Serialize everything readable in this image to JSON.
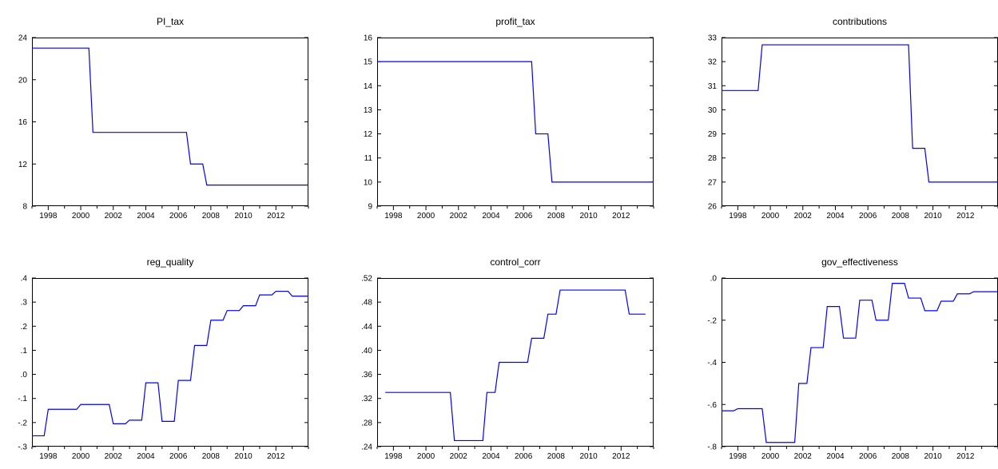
{
  "chart_data": [
    {
      "type": "line",
      "title": "PI_tax",
      "xlabel": "",
      "ylabel": "",
      "xlim": [
        1997,
        2014
      ],
      "ylim": [
        8,
        24
      ],
      "y_ticks": [
        8,
        12,
        16,
        20,
        24
      ],
      "y_tick_labels": [
        "8",
        "12",
        "16",
        "20",
        "24"
      ],
      "x_ticks": [
        1998,
        2000,
        2002,
        2004,
        2006,
        2008,
        2010,
        2012
      ],
      "x_tick_labels": [
        "1998",
        "2000",
        "2002",
        "2004",
        "2006",
        "2008",
        "2010",
        "2012"
      ],
      "grid": false,
      "line_color": "#0000ff",
      "x": [
        1997,
        2000.5,
        2000.75,
        2006.5,
        2006.75,
        2007.5,
        2007.75,
        2014
      ],
      "y": [
        23,
        23,
        15,
        15,
        12,
        12,
        10,
        10
      ]
    },
    {
      "type": "line",
      "title": "profit_tax",
      "xlabel": "",
      "ylabel": "",
      "xlim": [
        1997,
        2014
      ],
      "ylim": [
        9,
        16
      ],
      "y_ticks": [
        9,
        10,
        11,
        12,
        13,
        14,
        15,
        16
      ],
      "y_tick_labels": [
        "9",
        "10",
        "11",
        "12",
        "13",
        "14",
        "15",
        "16"
      ],
      "x_ticks": [
        1998,
        2000,
        2002,
        2004,
        2006,
        2008,
        2010,
        2012
      ],
      "x_tick_labels": [
        "1998",
        "2000",
        "2002",
        "2004",
        "2006",
        "2008",
        "2010",
        "2012"
      ],
      "grid": false,
      "line_color": "#0000ff",
      "x": [
        1997,
        2006.5,
        2006.75,
        2007.5,
        2007.75,
        2014
      ],
      "y": [
        15,
        15,
        12,
        12,
        10,
        10
      ]
    },
    {
      "type": "line",
      "title": "contributions",
      "xlabel": "",
      "ylabel": "",
      "xlim": [
        1997,
        2014
      ],
      "ylim": [
        26,
        33
      ],
      "y_ticks": [
        26,
        27,
        28,
        29,
        30,
        31,
        32,
        33
      ],
      "y_tick_labels": [
        "26",
        "27",
        "28",
        "29",
        "30",
        "31",
        "32",
        "33"
      ],
      "x_ticks": [
        1998,
        2000,
        2002,
        2004,
        2006,
        2008,
        2010,
        2012
      ],
      "x_tick_labels": [
        "1998",
        "2000",
        "2002",
        "2004",
        "2006",
        "2008",
        "2010",
        "2012"
      ],
      "grid": false,
      "line_color": "#0000ff",
      "x": [
        1997,
        1999.25,
        1999.5,
        2008.5,
        2008.75,
        2009.5,
        2009.75,
        2014
      ],
      "y": [
        30.8,
        30.8,
        32.7,
        32.7,
        28.4,
        28.4,
        27,
        27
      ]
    },
    {
      "type": "line",
      "title": "reg_quality",
      "xlabel": "",
      "ylabel": "",
      "xlim": [
        1997,
        2014
      ],
      "ylim": [
        -0.3,
        0.4
      ],
      "y_ticks": [
        -0.3,
        -0.2,
        -0.1,
        0.0,
        0.1,
        0.2,
        0.3,
        0.4
      ],
      "y_tick_labels": [
        "-.3",
        "-.2",
        "-.1",
        ".0",
        ".1",
        ".2",
        ".3",
        ".4"
      ],
      "x_ticks": [
        1998,
        2000,
        2002,
        2004,
        2006,
        2008,
        2010,
        2012
      ],
      "x_tick_labels": [
        "1998",
        "2000",
        "2002",
        "2004",
        "2006",
        "2008",
        "2010",
        "2012"
      ],
      "grid": false,
      "line_color": "#0000ff",
      "x": [
        1997,
        1997.75,
        1998,
        1999.75,
        2000,
        2001.75,
        2002,
        2002.75,
        2003,
        2003.75,
        2004,
        2004.75,
        2005,
        2005.75,
        2006,
        2006.75,
        2007,
        2007.75,
        2008,
        2008.75,
        2009,
        2009.75,
        2010,
        2010.75,
        2011,
        2011.75,
        2012,
        2012.75,
        2013,
        2014
      ],
      "y": [
        -0.255,
        -0.255,
        -0.145,
        -0.145,
        -0.125,
        -0.125,
        -0.205,
        -0.205,
        -0.19,
        -0.19,
        -0.035,
        -0.035,
        -0.195,
        -0.195,
        -0.025,
        -0.025,
        0.12,
        0.12,
        0.225,
        0.225,
        0.265,
        0.265,
        0.285,
        0.285,
        0.33,
        0.33,
        0.345,
        0.345,
        0.325,
        0.325
      ]
    },
    {
      "type": "line",
      "title": "control_corr",
      "xlabel": "",
      "ylabel": "",
      "xlim": [
        1997,
        2014
      ],
      "ylim": [
        0.24,
        0.52
      ],
      "y_ticks": [
        0.24,
        0.28,
        0.32,
        0.36,
        0.4,
        0.44,
        0.48,
        0.52
      ],
      "y_tick_labels": [
        ".24",
        ".28",
        ".32",
        ".36",
        ".40",
        ".44",
        ".48",
        ".52"
      ],
      "x_ticks": [
        1998,
        2000,
        2002,
        2004,
        2006,
        2008,
        2010,
        2012
      ],
      "x_tick_labels": [
        "1998",
        "2000",
        "2002",
        "2004",
        "2006",
        "2008",
        "2010",
        "2012"
      ],
      "grid": false,
      "line_color": "#0000ff",
      "x": [
        1997.5,
        2001.5,
        2001.75,
        2003.5,
        2003.75,
        2004.25,
        2004.5,
        2006.25,
        2006.5,
        2007.25,
        2007.5,
        2008,
        2008.25,
        2012.25,
        2012.5,
        2013.5
      ],
      "y": [
        0.33,
        0.33,
        0.25,
        0.25,
        0.33,
        0.33,
        0.38,
        0.38,
        0.42,
        0.42,
        0.46,
        0.46,
        0.5,
        0.5,
        0.46,
        0.46
      ]
    },
    {
      "type": "line",
      "title": "gov_effectiveness",
      "xlabel": "",
      "ylabel": "",
      "xlim": [
        1997,
        2014
      ],
      "ylim": [
        -0.8,
        0.0
      ],
      "y_ticks": [
        -0.8,
        -0.6,
        -0.4,
        -0.2,
        0.0
      ],
      "y_tick_labels": [
        "-.8",
        "-.6",
        "-.4",
        "-.2",
        ".0"
      ],
      "x_ticks": [
        1998,
        2000,
        2002,
        2004,
        2006,
        2008,
        2010,
        2012
      ],
      "x_tick_labels": [
        "1998",
        "2000",
        "2002",
        "2004",
        "2006",
        "2008",
        "2010",
        "2012"
      ],
      "grid": false,
      "line_color": "#0000ff",
      "x": [
        1997,
        1997.75,
        1998,
        1999.5,
        1999.75,
        2001.5,
        2001.75,
        2002.25,
        2002.5,
        2003.25,
        2003.5,
        2004.25,
        2004.5,
        2005.25,
        2005.5,
        2006.25,
        2006.5,
        2007.25,
        2007.5,
        2008.25,
        2008.5,
        2009.25,
        2009.5,
        2010.25,
        2010.5,
        2011.25,
        2011.5,
        2012.25,
        2012.5,
        2014
      ],
      "y": [
        -0.63,
        -0.63,
        -0.62,
        -0.62,
        -0.78,
        -0.78,
        -0.5,
        -0.5,
        -0.33,
        -0.33,
        -0.135,
        -0.135,
        -0.285,
        -0.285,
        -0.105,
        -0.105,
        -0.2,
        -0.2,
        -0.025,
        -0.025,
        -0.095,
        -0.095,
        -0.155,
        -0.155,
        -0.11,
        -0.11,
        -0.075,
        -0.075,
        -0.065,
        -0.065
      ]
    }
  ]
}
